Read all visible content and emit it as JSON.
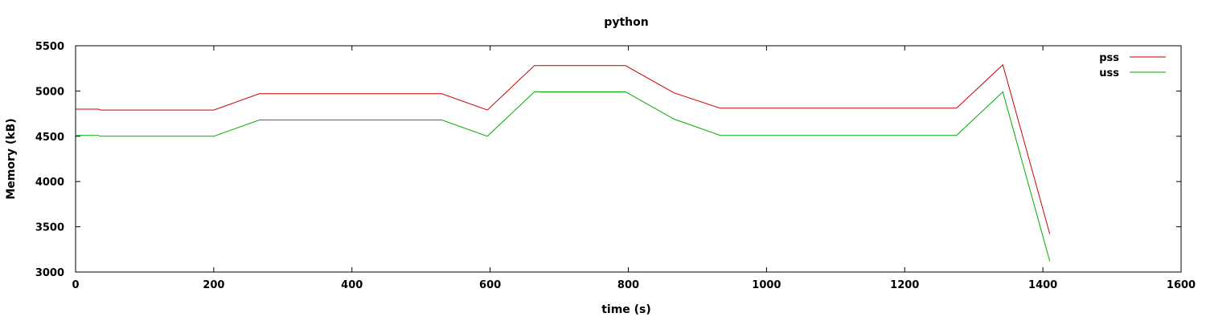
{
  "chart_data": {
    "type": "line",
    "title": "python",
    "xlabel": "time (s)",
    "ylabel": "Memory (kB)",
    "xlim": [
      0,
      1600
    ],
    "ylim": [
      3000,
      5500
    ],
    "xticks": [
      "0",
      "200",
      "400",
      "600",
      "800",
      "1000",
      "1200",
      "1400",
      "1600"
    ],
    "yticks": [
      "3000",
      "3500",
      "4000",
      "4500",
      "5000",
      "5500"
    ],
    "grid": false,
    "legend_position": "top-right",
    "series": [
      {
        "name": "pss",
        "color": "#cc0000",
        "points": [
          [
            0,
            4800
          ],
          [
            33,
            4800
          ],
          [
            36,
            4790
          ],
          [
            200,
            4790
          ],
          [
            266,
            4970
          ],
          [
            530,
            4970
          ],
          [
            596,
            4790
          ],
          [
            664,
            5280
          ],
          [
            796,
            5280
          ],
          [
            866,
            4980
          ],
          [
            933,
            4810
          ],
          [
            1275,
            4810
          ],
          [
            1342,
            5290
          ],
          [
            1410,
            3420
          ]
        ]
      },
      {
        "name": "uss",
        "color": "#00aa00",
        "points": [
          [
            0,
            4510
          ],
          [
            33,
            4510
          ],
          [
            36,
            4500
          ],
          [
            200,
            4500
          ],
          [
            266,
            4680
          ],
          [
            530,
            4680
          ],
          [
            596,
            4500
          ],
          [
            664,
            4990
          ],
          [
            796,
            4990
          ],
          [
            866,
            4690
          ],
          [
            933,
            4510
          ],
          [
            1275,
            4510
          ],
          [
            1342,
            4990
          ],
          [
            1410,
            3120
          ]
        ]
      }
    ]
  }
}
